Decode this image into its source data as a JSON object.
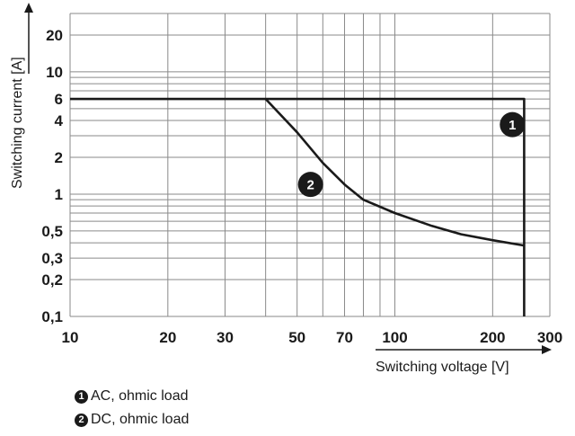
{
  "chart_data": {
    "type": "line",
    "x_scale": "log",
    "y_scale": "log",
    "xlabel": "Switching voltage [V]",
    "ylabel": "Switching current [A]",
    "xlim": [
      10,
      300
    ],
    "ylim": [
      0.1,
      30
    ],
    "x_ticks": [
      {
        "value": 10,
        "label": "10"
      },
      {
        "value": 20,
        "label": "20"
      },
      {
        "value": 30,
        "label": "30"
      },
      {
        "value": 50,
        "label": "50"
      },
      {
        "value": 70,
        "label": "70"
      },
      {
        "value": 100,
        "label": "100"
      },
      {
        "value": 200,
        "label": "200"
      },
      {
        "value": 300,
        "label": "300"
      }
    ],
    "y_ticks": [
      {
        "value": 0.1,
        "label": "0,1"
      },
      {
        "value": 0.2,
        "label": "0,2"
      },
      {
        "value": 0.3,
        "label": "0,3"
      },
      {
        "value": 0.5,
        "label": "0,5"
      },
      {
        "value": 1,
        "label": "1"
      },
      {
        "value": 2,
        "label": "2"
      },
      {
        "value": 4,
        "label": "4"
      },
      {
        "value": 6,
        "label": "6"
      },
      {
        "value": 10,
        "label": "10"
      },
      {
        "value": 20,
        "label": "20"
      }
    ],
    "series": [
      {
        "id": "1",
        "name": "AC, ohmic load",
        "x": [
          10,
          250,
          250
        ],
        "y": [
          6,
          6,
          0.1
        ],
        "marker_at": {
          "x": 230,
          "y": 3.7
        }
      },
      {
        "id": "2",
        "name": "DC, ohmic load",
        "x": [
          40,
          50,
          60,
          70,
          80,
          100,
          130,
          160,
          200,
          250
        ],
        "y": [
          6,
          3.2,
          1.8,
          1.2,
          0.9,
          0.7,
          0.55,
          0.47,
          0.42,
          0.38
        ],
        "marker_at": {
          "x": 55,
          "y": 1.2
        }
      }
    ]
  },
  "legend": [
    {
      "badge": "1",
      "label": "AC, ohmic load"
    },
    {
      "badge": "2",
      "label": "DC, ohmic load"
    }
  ]
}
